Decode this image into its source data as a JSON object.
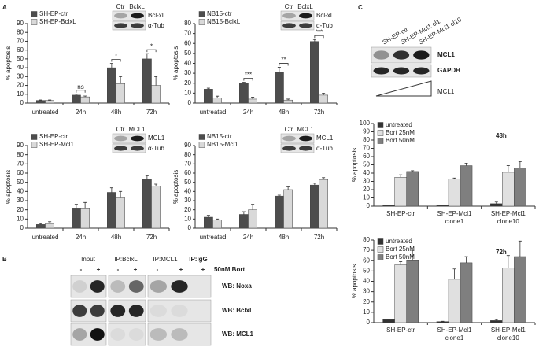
{
  "panel_labels": [
    "A",
    "B",
    "C"
  ],
  "chart_data": [
    {
      "type": "bar",
      "y_label": "% apoptosis",
      "categories": [
        "untreated",
        "24h",
        "48h",
        "72h"
      ],
      "series": [
        {
          "name": "SH-EP-ctr",
          "color": "#4d4d4d",
          "values": [
            3,
            9,
            40,
            50
          ],
          "errors": [
            0.5,
            1,
            5,
            6
          ]
        },
        {
          "name": "SH-EP-BclxL",
          "color": "#d9d9d9",
          "values": [
            3,
            7,
            22,
            20
          ],
          "errors": [
            0.5,
            1,
            8,
            10
          ]
        }
      ],
      "significance": [
        null,
        "ns",
        "*",
        "*"
      ],
      "ylim": [
        0,
        90
      ],
      "yticks": [
        0,
        10,
        20,
        30,
        40,
        50,
        60,
        70,
        80,
        90
      ]
    },
    {
      "type": "bar",
      "y_label": "% apoptosis",
      "categories": [
        "untreated",
        "24h",
        "48h",
        "72h"
      ],
      "series": [
        {
          "name": "NB15-ctr",
          "color": "#4d4d4d",
          "values": [
            14,
            20,
            31,
            62
          ],
          "errors": [
            1,
            1,
            5,
            2
          ]
        },
        {
          "name": "NB15-BclxL",
          "color": "#d9d9d9",
          "values": [
            5,
            4,
            3,
            8
          ],
          "errors": [
            2,
            2,
            1,
            2
          ]
        }
      ],
      "significance": [
        null,
        "***",
        "**",
        "***"
      ],
      "ylim": [
        0,
        80
      ],
      "yticks": [
        0,
        10,
        20,
        30,
        40,
        50,
        60,
        70,
        80
      ]
    },
    {
      "type": "bar",
      "y_label": "% apoptosis",
      "categories": [
        "untreated",
        "24h",
        "48h",
        "72h"
      ],
      "series": [
        {
          "name": "SH-EP-ctr",
          "color": "#4d4d4d",
          "values": [
            4,
            22,
            39,
            53
          ],
          "errors": [
            1,
            4,
            5,
            4
          ]
        },
        {
          "name": "SH-EP-Mcl1",
          "color": "#d9d9d9",
          "values": [
            5,
            22,
            33,
            46
          ],
          "errors": [
            2,
            6,
            7,
            2
          ]
        }
      ],
      "ylim": [
        0,
        90
      ],
      "yticks": [
        0,
        10,
        20,
        30,
        40,
        50,
        60,
        70,
        80,
        90
      ]
    },
    {
      "type": "bar",
      "y_label": "% apoptosis",
      "categories": [
        "untreated",
        "24h",
        "48h",
        "72h"
      ],
      "series": [
        {
          "name": "NB15-ctr",
          "color": "#4d4d4d",
          "values": [
            12,
            15,
            35,
            47
          ],
          "errors": [
            2,
            3,
            1,
            2
          ]
        },
        {
          "name": "NB15-Mcl1",
          "color": "#d9d9d9",
          "values": [
            9,
            20,
            42,
            53
          ],
          "errors": [
            1,
            6,
            3,
            2
          ]
        }
      ],
      "ylim": [
        0,
        90
      ],
      "yticks": [
        0,
        10,
        20,
        30,
        40,
        50,
        60,
        70,
        80,
        90
      ]
    },
    {
      "type": "bar",
      "title": "48h",
      "y_label": "% apoptosis",
      "categories": [
        "SH-EP-ctr",
        "SH-EP-Mcl1 clone1",
        "SH-EP-Mcl1 clone10"
      ],
      "series": [
        {
          "name": "untreated",
          "color": "#333333",
          "values": [
            1,
            1,
            3
          ],
          "errors": [
            0.3,
            0.3,
            2
          ]
        },
        {
          "name": "Bort 25nM",
          "color": "#e0e0e0",
          "values": [
            35,
            33,
            41
          ],
          "errors": [
            3,
            1,
            8
          ]
        },
        {
          "name": "Bort 50nM",
          "color": "#7f7f7f",
          "values": [
            42,
            49,
            46
          ],
          "errors": [
            1,
            3,
            8
          ]
        }
      ],
      "ylim": [
        0,
        100
      ],
      "yticks": [
        0,
        10,
        20,
        30,
        40,
        50,
        60,
        70,
        80,
        90,
        100
      ]
    },
    {
      "type": "bar",
      "title": "72h",
      "y_label": "% apoptosis",
      "categories": [
        "SH-EP-ctr",
        "SH-EP-Mcl1 clone1",
        "SH-EP-Mcl1 clone10"
      ],
      "series": [
        {
          "name": "untreated",
          "color": "#333333",
          "values": [
            3,
            1,
            2
          ],
          "errors": [
            0.3,
            0.3,
            1
          ]
        },
        {
          "name": "Bort 25nM",
          "color": "#e0e0e0",
          "values": [
            56,
            42,
            53
          ],
          "errors": [
            3,
            10,
            12
          ]
        },
        {
          "name": "Bort 50nM",
          "color": "#7f7f7f",
          "values": [
            60,
            58,
            64
          ],
          "errors": [
            10,
            6,
            15
          ]
        }
      ],
      "ylim": [
        0,
        80
      ],
      "yticks": [
        0,
        10,
        20,
        30,
        40,
        50,
        60,
        70,
        80
      ]
    }
  ],
  "inset_blots": [
    {
      "lanes": [
        "Ctr",
        "BclxL"
      ],
      "bands": [
        "Bcl-xL",
        "α-Tub"
      ]
    },
    {
      "lanes": [
        "Ctr",
        "BclxL"
      ],
      "bands": [
        "Bcl-xL",
        "α-Tub"
      ]
    },
    {
      "lanes": [
        "Ctr",
        "MCL1"
      ],
      "bands": [
        "MCL1",
        "α-Tub"
      ]
    },
    {
      "lanes": [
        "Ctr",
        "MCL1"
      ],
      "bands": [
        "MCL1",
        "α-Tub"
      ]
    }
  ],
  "panel_b": {
    "groups": [
      "Input",
      "IP:BclxL",
      "IP:MCL1",
      "IP:IgG"
    ],
    "signs": [
      "-",
      "+",
      "-",
      "+",
      "-",
      "+",
      "+"
    ],
    "treatment": "50nM Bort",
    "rows": [
      "WB: Noxa",
      "WB: BclxL",
      "WB: MCL1"
    ]
  },
  "panel_c_blot": {
    "lanes": [
      "SH-EP-ctr",
      "SH-EP-Mcl1 cl1",
      "SH-EP-Mcl1 cl10"
    ],
    "bands": [
      "MCL1",
      "GAPDH"
    ],
    "gradient_label": "MCL1"
  }
}
